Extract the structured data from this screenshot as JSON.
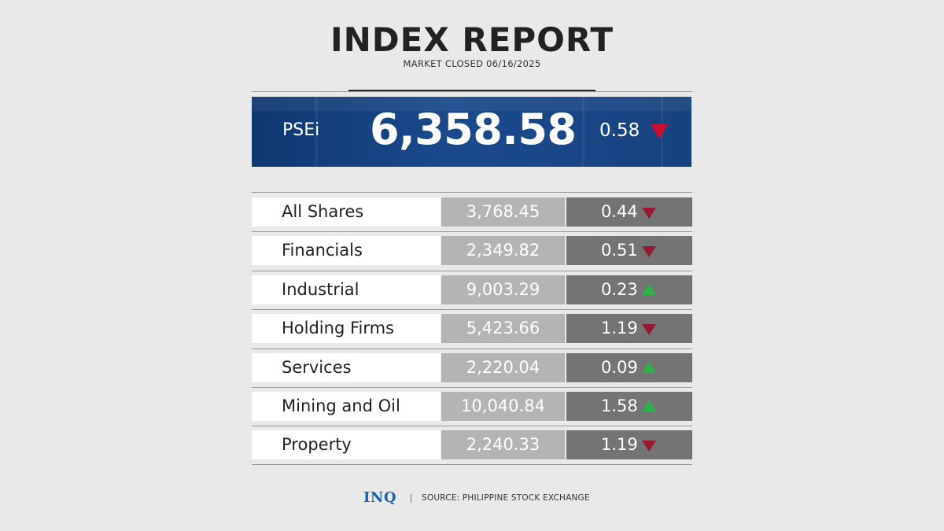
{
  "header": {
    "title": "INDEX REPORT",
    "subtitle": "MARKET CLOSED 06/16/2025"
  },
  "hero": {
    "label": "PSEi",
    "value": "6,358.58",
    "change": "0.58",
    "direction": "down"
  },
  "indices": [
    {
      "name": "All Shares",
      "value": "3,768.45",
      "change": "0.44",
      "direction": "down"
    },
    {
      "name": "Financials",
      "value": "2,349.82",
      "change": "0.51",
      "direction": "down"
    },
    {
      "name": "Industrial",
      "value": "9,003.29",
      "change": "0.23",
      "direction": "up"
    },
    {
      "name": "Holding Firms",
      "value": "5,423.66",
      "change": "1.19",
      "direction": "down"
    },
    {
      "name": "Services",
      "value": "2,220.04",
      "change": "0.09",
      "direction": "up"
    },
    {
      "name": "Mining and Oil",
      "value": "10,040.84",
      "change": "1.58",
      "direction": "up"
    },
    {
      "name": "Property",
      "value": "2,240.33",
      "change": "1.19",
      "direction": "down"
    }
  ],
  "footer": {
    "logo": "INQ",
    "source": "SOURCE: PHILIPPINE STOCK EXCHANGE"
  },
  "colors": {
    "background": "#e9e9e9",
    "hero_blue": "#17427f",
    "down": "#9a1730",
    "up": "#2bb34a",
    "brand": "#1b63b0"
  }
}
